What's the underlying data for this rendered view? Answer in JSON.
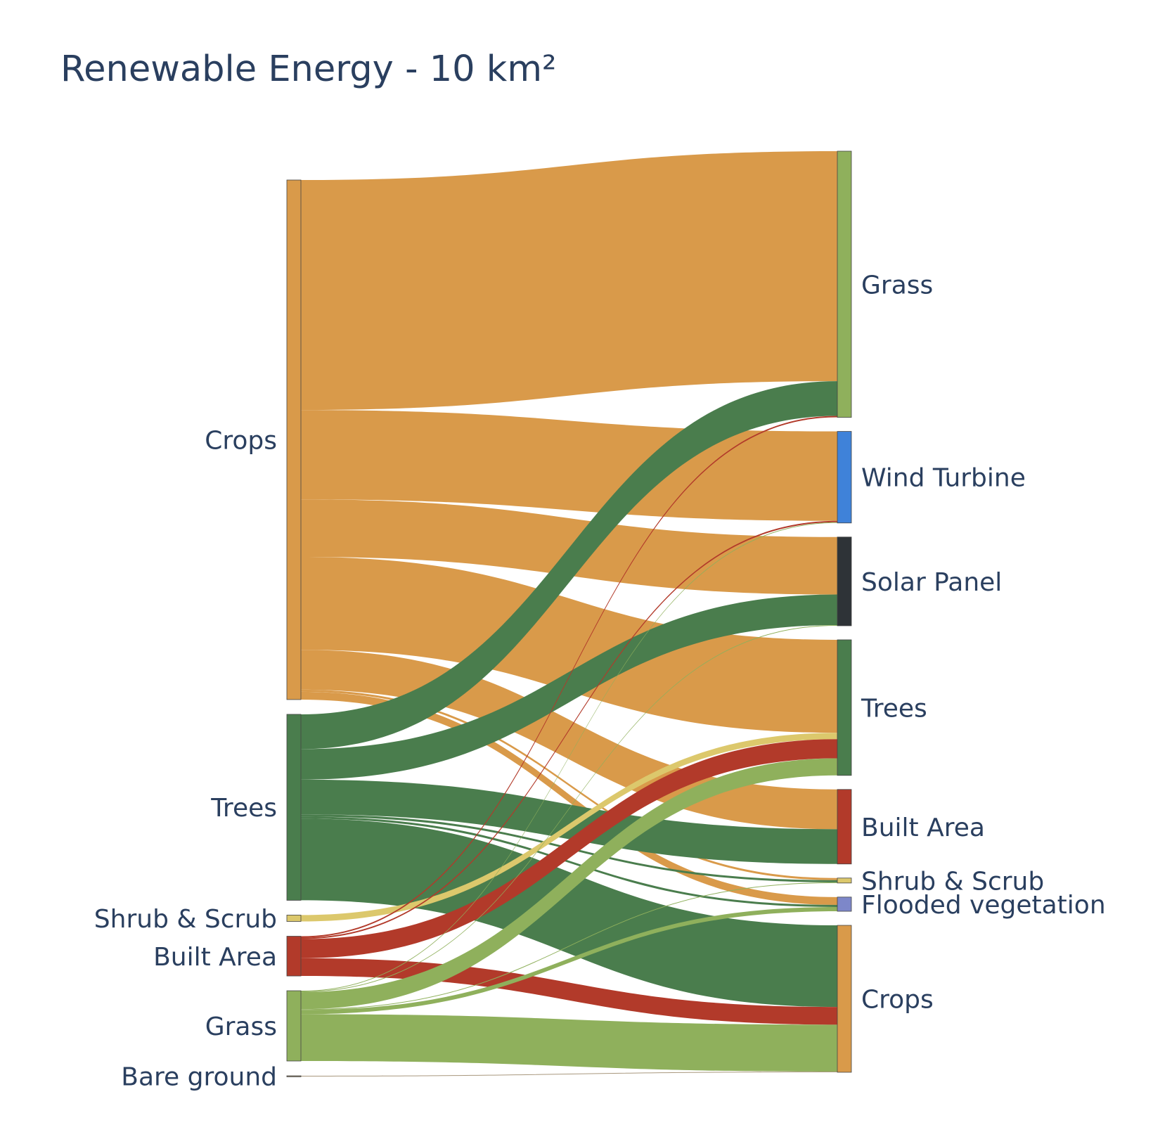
{
  "chart_data": {
    "type": "sankey",
    "title": "Renewable Energy - 10 km²",
    "nodes": {
      "source": [
        {
          "id": "src_crops",
          "label": "Crops",
          "color": "#d99a4a"
        },
        {
          "id": "src_trees",
          "label": "Trees",
          "color": "#4a7d4d"
        },
        {
          "id": "src_shrub",
          "label": "Shrub & Scrub",
          "color": "#dcc86c"
        },
        {
          "id": "src_built",
          "label": "Built Area",
          "color": "#b23a2a"
        },
        {
          "id": "src_grass",
          "label": "Grass",
          "color": "#8fb05c"
        },
        {
          "id": "src_bare",
          "label": "Bare ground",
          "color": "#a8977d"
        }
      ],
      "target": [
        {
          "id": "tgt_grass",
          "label": "Grass",
          "color": "#8fb05c"
        },
        {
          "id": "tgt_wind",
          "label": "Wind Turbine",
          "color": "#3f82d9"
        },
        {
          "id": "tgt_solar",
          "label": "Solar Panel",
          "color": "#2e3337"
        },
        {
          "id": "tgt_trees",
          "label": "Trees",
          "color": "#4a7d4d"
        },
        {
          "id": "tgt_built",
          "label": "Built Area",
          "color": "#b23a2a"
        },
        {
          "id": "tgt_shrub",
          "label": "Shrub & Scrub",
          "color": "#dcc86c"
        },
        {
          "id": "tgt_flooded",
          "label": "Flooded vegetation",
          "color": "#7d87c9"
        },
        {
          "id": "tgt_crops",
          "label": "Crops",
          "color": "#d99a4a"
        }
      ]
    },
    "links": [
      {
        "source": "src_crops",
        "target": "tgt_grass",
        "value": 3.24
      },
      {
        "source": "src_crops",
        "target": "tgt_wind",
        "value": 1.26
      },
      {
        "source": "src_crops",
        "target": "tgt_solar",
        "value": 0.81
      },
      {
        "source": "src_crops",
        "target": "tgt_trees",
        "value": 1.31
      },
      {
        "source": "src_crops",
        "target": "tgt_built",
        "value": 0.56
      },
      {
        "source": "src_crops",
        "target": "tgt_shrub",
        "value": 0.03
      },
      {
        "source": "src_crops",
        "target": "tgt_flooded",
        "value": 0.11
      },
      {
        "source": "src_trees",
        "target": "tgt_grass",
        "value": 0.49
      },
      {
        "source": "src_trees",
        "target": "tgt_solar",
        "value": 0.43
      },
      {
        "source": "src_trees",
        "target": "tgt_built",
        "value": 0.49
      },
      {
        "source": "src_trees",
        "target": "tgt_shrub",
        "value": 0.03
      },
      {
        "source": "src_trees",
        "target": "tgt_flooded",
        "value": 0.03
      },
      {
        "source": "src_trees",
        "target": "tgt_crops",
        "value": 1.15
      },
      {
        "source": "src_shrub",
        "target": "tgt_trees",
        "value": 0.09
      },
      {
        "source": "src_built",
        "target": "tgt_grass",
        "value": 0.02
      },
      {
        "source": "src_built",
        "target": "tgt_wind",
        "value": 0.02
      },
      {
        "source": "src_built",
        "target": "tgt_trees",
        "value": 0.27
      },
      {
        "source": "src_built",
        "target": "tgt_crops",
        "value": 0.25
      },
      {
        "source": "src_grass",
        "target": "tgt_wind",
        "value": 0.01
      },
      {
        "source": "src_grass",
        "target": "tgt_solar",
        "value": 0.01
      },
      {
        "source": "src_grass",
        "target": "tgt_trees",
        "value": 0.24
      },
      {
        "source": "src_grass",
        "target": "tgt_shrub",
        "value": 0.01
      },
      {
        "source": "src_grass",
        "target": "tgt_flooded",
        "value": 0.06
      },
      {
        "source": "src_grass",
        "target": "tgt_crops",
        "value": 0.66
      },
      {
        "source": "src_bare",
        "target": "tgt_crops",
        "value": 0.01
      }
    ]
  }
}
